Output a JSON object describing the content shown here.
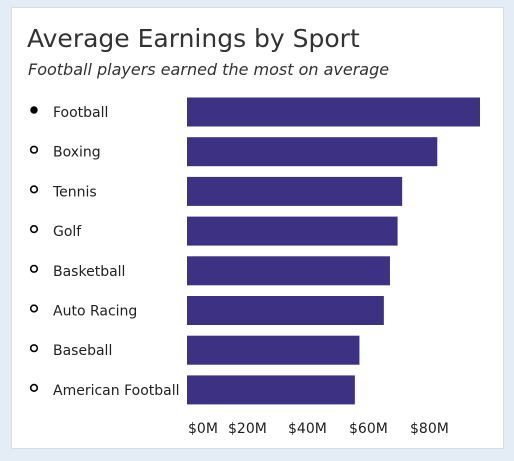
{
  "colors": {
    "bar": "#3d3183",
    "text": "#222222",
    "background": "#e4edf5",
    "card": "#ffffff"
  },
  "chart_data": {
    "type": "bar",
    "orientation": "horizontal",
    "title": "Average Earnings by Sport",
    "subtitle": "Football players earned the most on average",
    "categories": [
      "Football",
      "Boxing",
      "Tennis",
      "Golf",
      "Basketball",
      "Auto Racing",
      "Baseball",
      "American Football"
    ],
    "values": [
      96,
      82,
      70.5,
      69,
      66.5,
      64.5,
      56.5,
      55
    ],
    "selected_category": "Football",
    "xlim": [
      0,
      96
    ],
    "x_ticks": [
      "$0M",
      "$20M",
      "$40M",
      "$60M",
      "$80M"
    ],
    "x_tick_values": [
      0,
      20,
      40,
      60,
      80
    ],
    "grid": false,
    "legend": "none"
  }
}
